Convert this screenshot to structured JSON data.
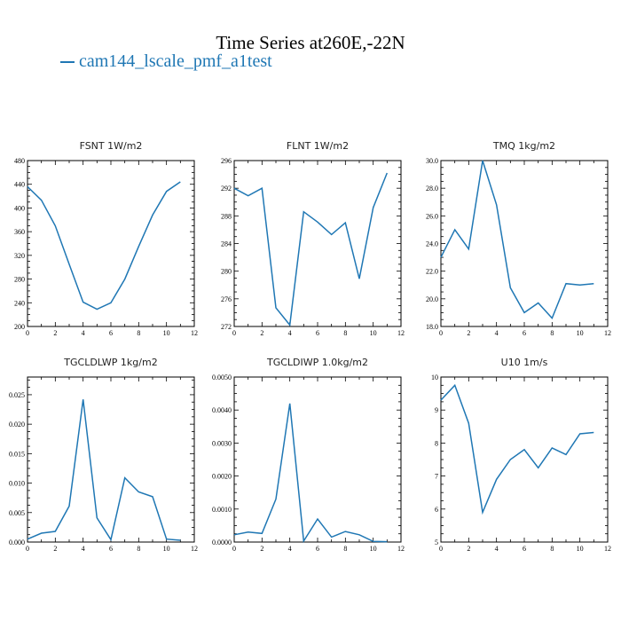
{
  "title": "Time Series at260E,-22N",
  "legend": {
    "label": "cam144_lscale_pmf_a1test",
    "color": "#1f77b4"
  },
  "chart_data": [
    {
      "type": "line",
      "title": "FSNT   1W/m2",
      "x": [
        0,
        1,
        2,
        3,
        4,
        5,
        6,
        7,
        8,
        9,
        10,
        11
      ],
      "series": [
        {
          "values": [
            436,
            413,
            370,
            305,
            241,
            229,
            240,
            280,
            335,
            388,
            428,
            444
          ]
        }
      ],
      "xlim": [
        0,
        12
      ],
      "ylim": [
        200,
        480
      ],
      "xticks": [
        "0",
        "2",
        "4",
        "6",
        "8",
        "10",
        "12"
      ],
      "yticks": [
        "200",
        "240",
        "280",
        "320",
        "360",
        "400",
        "440",
        "480"
      ]
    },
    {
      "type": "line",
      "title": "FLNT   1W/m2",
      "x": [
        0,
        1,
        2,
        3,
        4,
        5,
        6,
        7,
        8,
        9,
        10,
        11
      ],
      "series": [
        {
          "values": [
            292.0,
            290.9,
            292.0,
            274.7,
            272.2,
            288.6,
            287.1,
            285.3,
            287.0,
            278.9,
            289.2,
            294.2
          ]
        }
      ],
      "xlim": [
        0,
        12
      ],
      "ylim": [
        272,
        296
      ],
      "xticks": [
        "0",
        "2",
        "4",
        "6",
        "8",
        "10",
        "12"
      ],
      "yticks": [
        "272",
        "276",
        "280",
        "284",
        "288",
        "292",
        "296"
      ]
    },
    {
      "type": "line",
      "title": "TMQ   1kg/m2",
      "x": [
        0,
        1,
        2,
        3,
        4,
        5,
        6,
        7,
        8,
        9,
        10,
        11
      ],
      "series": [
        {
          "values": [
            23.0,
            25.0,
            23.6,
            30.0,
            26.8,
            20.8,
            19.0,
            19.7,
            18.6,
            21.1,
            21.0,
            21.1
          ]
        }
      ],
      "xlim": [
        0,
        12
      ],
      "ylim": [
        18,
        30
      ],
      "xticks": [
        "0",
        "2",
        "4",
        "6",
        "8",
        "10",
        "12"
      ],
      "yticks": [
        "18.0",
        "20.0",
        "22.0",
        "24.0",
        "26.0",
        "28.0",
        "30.0"
      ]
    },
    {
      "type": "line",
      "title": "TGCLDLWP   1kg/m2",
      "x": [
        0,
        1,
        2,
        3,
        4,
        5,
        6,
        7,
        8,
        9,
        10,
        11
      ],
      "series": [
        {
          "values": [
            0.0005,
            0.0015,
            0.0018,
            0.0061,
            0.0242,
            0.0041,
            0.0004,
            0.0109,
            0.0085,
            0.0077,
            0.0005,
            0.0003
          ]
        }
      ],
      "xlim": [
        0,
        12
      ],
      "ylim": [
        0,
        0.028
      ],
      "xticks": [
        "0",
        "2",
        "4",
        "6",
        "8",
        "10",
        "12"
      ],
      "yticks": [
        "0.000",
        "0.005",
        "0.010",
        "0.015",
        "0.020",
        "0.025"
      ],
      "ytick_values": [
        0,
        0.005,
        0.01,
        0.015,
        0.02,
        0.025
      ]
    },
    {
      "type": "line",
      "title": "TGCLDIWP   1.0kg/m2",
      "x": [
        0,
        1,
        2,
        3,
        4,
        5,
        6,
        7,
        8,
        9,
        10,
        11
      ],
      "series": [
        {
          "values": [
            0.00022,
            0.0003,
            0.00026,
            0.0013,
            0.0042,
            3e-05,
            0.0007,
            0.00015,
            0.00032,
            0.00022,
            2e-05,
            1e-05
          ]
        }
      ],
      "xlim": [
        0,
        12
      ],
      "ylim": [
        0,
        0.005
      ],
      "xticks": [
        "0",
        "2",
        "4",
        "6",
        "8",
        "10",
        "12"
      ],
      "yticks": [
        "0.0000",
        "0.0010",
        "0.0020",
        "0.0030",
        "0.0040",
        "0.0050"
      ]
    },
    {
      "type": "line",
      "title": "U10   1m/s",
      "x": [
        0,
        1,
        2,
        3,
        4,
        5,
        6,
        7,
        8,
        9,
        10,
        11
      ],
      "series": [
        {
          "values": [
            9.3,
            9.75,
            8.6,
            5.9,
            6.9,
            7.5,
            7.8,
            7.25,
            7.85,
            7.65,
            8.28,
            8.32
          ]
        }
      ],
      "xlim": [
        0,
        12
      ],
      "ylim": [
        5,
        10
      ],
      "xticks": [
        "0",
        "2",
        "4",
        "6",
        "8",
        "10",
        "12"
      ],
      "yticks": [
        "5",
        "6",
        "7",
        "8",
        "9",
        "10"
      ]
    }
  ]
}
